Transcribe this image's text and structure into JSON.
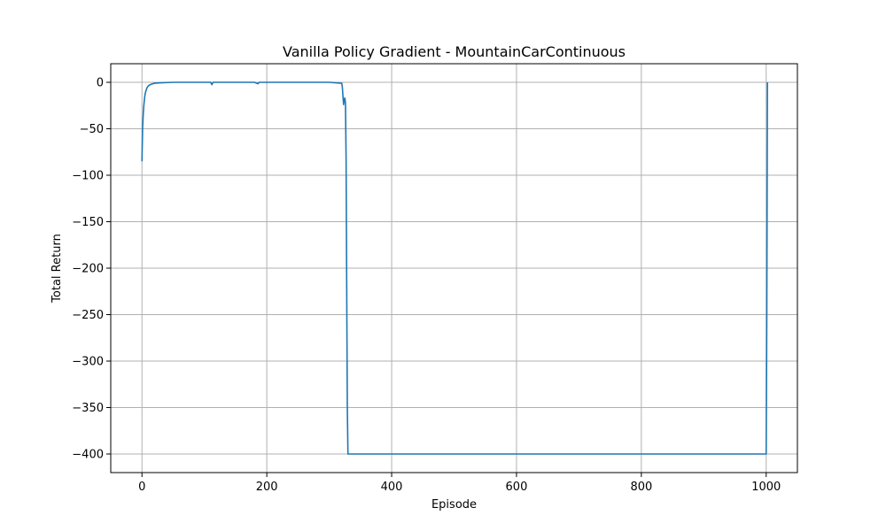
{
  "chart_data": {
    "type": "line",
    "title": "Vanilla Policy Gradient - MountainCarContinuous",
    "xlabel": "Episode",
    "ylabel": "Total Return",
    "xlim": [
      -50,
      1050
    ],
    "ylim": [
      -420,
      20
    ],
    "xticks": [
      0,
      200,
      400,
      600,
      800,
      1000
    ],
    "xtick_labels": [
      "0",
      "200",
      "400",
      "600",
      "800",
      "1000"
    ],
    "yticks": [
      0,
      -50,
      -100,
      -150,
      -200,
      -250,
      -300,
      -350,
      -400
    ],
    "ytick_labels": [
      "0",
      "−50",
      "−100",
      "−150",
      "−200",
      "−250",
      "−300",
      "−350",
      "−400"
    ],
    "grid": true,
    "color": "#1f77b4",
    "series": [
      {
        "x": [
          0,
          1,
          2,
          3,
          4,
          5,
          6,
          7,
          8,
          10,
          12,
          15,
          20,
          30,
          50,
          100,
          110,
          112,
          114,
          130,
          180,
          186,
          188,
          200,
          250,
          300,
          320,
          321,
          322,
          323,
          324,
          325,
          326,
          327,
          328,
          329,
          330,
          331,
          332,
          400,
          500,
          600,
          700,
          800,
          900,
          1000,
          1001,
          1002
        ],
        "y": [
          -85,
          -50,
          -35,
          -25,
          -18,
          -13,
          -10,
          -8,
          -6,
          -4,
          -3,
          -2,
          -1,
          -0.5,
          0,
          0,
          0,
          -2.5,
          0,
          0,
          0,
          -1.5,
          0,
          0,
          0,
          0,
          -1,
          -5,
          -15,
          -24,
          -18,
          -17,
          -22,
          -80,
          -220,
          -350,
          -400,
          -400,
          -400,
          -400,
          -400,
          -400,
          -400,
          -400,
          -400,
          -400,
          -250,
          0
        ]
      }
    ]
  }
}
